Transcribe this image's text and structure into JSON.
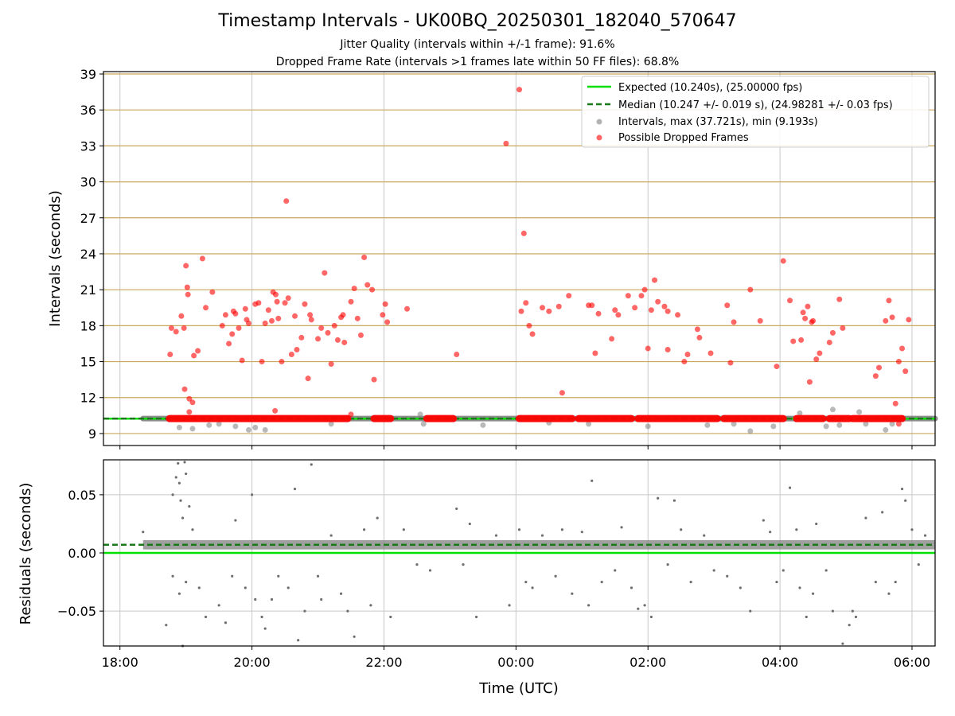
{
  "chart_data": [
    {
      "type": "scatter",
      "title": "Timestamp Intervals - UK00BQ_20250301_182040_570647",
      "subtitle_lines": [
        "Jitter Quality (intervals within +/-1 frame): 91.6%",
        "Dropped Frame Rate (intervals >1 frames late within 50 FF files): 68.8%"
      ],
      "xlabel": "",
      "ylabel": "Intervals (seconds)",
      "x_unit": "hours since 18:00 UTC (2025-03-01)",
      "xlim": [
        -0.25,
        12.35
      ],
      "ylim": [
        8,
        39.2
      ],
      "yticks": [
        9,
        12,
        15,
        18,
        21,
        24,
        27,
        30,
        33,
        36,
        39
      ],
      "ytick_labels": [
        "9",
        "12",
        "15",
        "18",
        "21",
        "24",
        "27",
        "30",
        "33",
        "36",
        "39"
      ],
      "grid": true,
      "legend_position": "top-right",
      "legend": [
        "Expected (10.240s), (25.00000 fps)",
        "Median (10.247 +/- 0.019 s), (24.98281 +/- 0.03 fps)",
        "Intervals, max (37.721s), min (9.193s)",
        "Possible Dropped Frames"
      ],
      "expected_interval": 10.24,
      "median_interval": 10.247,
      "intervals_range": [
        0.35,
        12.35
      ],
      "intervals_max": 37.721,
      "intervals_min": 9.193,
      "gray_outliers": [
        [
          0.9,
          9.5
        ],
        [
          1.1,
          9.4
        ],
        [
          1.35,
          9.7
        ],
        [
          1.5,
          9.8
        ],
        [
          1.75,
          9.6
        ],
        [
          1.95,
          9.3
        ],
        [
          2.05,
          9.5
        ],
        [
          2.2,
          9.3
        ],
        [
          3.2,
          9.8
        ],
        [
          4.55,
          10.6
        ],
        [
          4.6,
          9.8
        ],
        [
          5.5,
          9.7
        ],
        [
          6.5,
          9.9
        ],
        [
          7.1,
          9.8
        ],
        [
          8.0,
          9.6
        ],
        [
          8.9,
          9.7
        ],
        [
          9.3,
          9.8
        ],
        [
          9.55,
          9.2
        ],
        [
          9.9,
          9.6
        ],
        [
          10.3,
          10.7
        ],
        [
          10.7,
          9.6
        ],
        [
          10.8,
          11.0
        ],
        [
          10.9,
          9.7
        ],
        [
          11.2,
          10.8
        ],
        [
          11.3,
          9.8
        ],
        [
          11.6,
          9.3
        ],
        [
          11.7,
          9.8
        ]
      ],
      "dropped_frame_bands": [
        [
          0.75,
          3.45
        ],
        [
          3.85,
          4.1
        ],
        [
          4.65,
          5.05
        ],
        [
          6.05,
          6.85
        ],
        [
          6.95,
          7.75
        ],
        [
          7.85,
          9.05
        ],
        [
          9.15,
          10.05
        ],
        [
          10.25,
          10.65
        ],
        [
          10.75,
          11.05
        ],
        [
          11.1,
          11.85
        ]
      ],
      "dropped_frames": [
        [
          0.76,
          15.6
        ],
        [
          0.78,
          17.8
        ],
        [
          0.85,
          17.5
        ],
        [
          0.93,
          18.8
        ],
        [
          0.97,
          17.8
        ],
        [
          1.0,
          23.0
        ],
        [
          1.02,
          21.2
        ],
        [
          1.03,
          20.6
        ],
        [
          0.98,
          12.7
        ],
        [
          1.05,
          11.9
        ],
        [
          1.1,
          11.6
        ],
        [
          1.12,
          15.5
        ],
        [
          1.18,
          15.9
        ],
        [
          1.25,
          23.6
        ],
        [
          1.3,
          19.5
        ],
        [
          1.4,
          20.8
        ],
        [
          1.55,
          18.0
        ],
        [
          1.6,
          18.9
        ],
        [
          1.65,
          16.5
        ],
        [
          1.7,
          17.3
        ],
        [
          1.72,
          19.2
        ],
        [
          1.75,
          19.0
        ],
        [
          1.8,
          17.8
        ],
        [
          1.85,
          15.1
        ],
        [
          1.9,
          19.4
        ],
        [
          1.92,
          18.5
        ],
        [
          1.95,
          18.2
        ],
        [
          2.05,
          19.8
        ],
        [
          2.1,
          19.9
        ],
        [
          2.15,
          15.0
        ],
        [
          2.2,
          18.2
        ],
        [
          2.25,
          19.3
        ],
        [
          2.3,
          18.4
        ],
        [
          2.32,
          20.8
        ],
        [
          2.36,
          20.6
        ],
        [
          2.38,
          20.0
        ],
        [
          2.4,
          18.6
        ],
        [
          2.45,
          15.0
        ],
        [
          2.5,
          19.9
        ],
        [
          2.52,
          28.4
        ],
        [
          2.55,
          20.3
        ],
        [
          2.6,
          15.6
        ],
        [
          2.65,
          18.8
        ],
        [
          2.68,
          16.0
        ],
        [
          2.75,
          17.0
        ],
        [
          2.8,
          19.8
        ],
        [
          2.85,
          13.6
        ],
        [
          2.88,
          18.9
        ],
        [
          2.9,
          18.5
        ],
        [
          3.0,
          16.9
        ],
        [
          3.05,
          17.8
        ],
        [
          3.1,
          22.4
        ],
        [
          3.15,
          17.4
        ],
        [
          3.2,
          14.8
        ],
        [
          3.25,
          18.0
        ],
        [
          3.3,
          16.8
        ],
        [
          3.35,
          18.7
        ],
        [
          3.38,
          18.9
        ],
        [
          3.4,
          16.6
        ],
        [
          3.5,
          20.0
        ],
        [
          3.55,
          21.1
        ],
        [
          3.6,
          18.6
        ],
        [
          3.65,
          17.2
        ],
        [
          3.7,
          23.7
        ],
        [
          3.75,
          21.4
        ],
        [
          3.82,
          21.0
        ],
        [
          3.85,
          13.5
        ],
        [
          3.98,
          18.9
        ],
        [
          4.02,
          19.8
        ],
        [
          4.05,
          18.3
        ],
        [
          4.35,
          19.4
        ],
        [
          5.1,
          15.6
        ],
        [
          5.85,
          33.2
        ],
        [
          6.05,
          37.7
        ],
        [
          6.08,
          19.2
        ],
        [
          6.12,
          25.7
        ],
        [
          6.15,
          19.9
        ],
        [
          6.2,
          18.0
        ],
        [
          6.25,
          17.3
        ],
        [
          6.4,
          19.5
        ],
        [
          6.5,
          19.2
        ],
        [
          6.65,
          19.6
        ],
        [
          6.7,
          12.4
        ],
        [
          6.8,
          20.5
        ],
        [
          7.1,
          19.7
        ],
        [
          7.15,
          19.7
        ],
        [
          7.2,
          15.7
        ],
        [
          7.25,
          19.0
        ],
        [
          7.45,
          16.9
        ],
        [
          7.5,
          19.3
        ],
        [
          7.55,
          18.9
        ],
        [
          7.7,
          20.5
        ],
        [
          7.8,
          19.5
        ],
        [
          7.9,
          20.5
        ],
        [
          7.95,
          21.0
        ],
        [
          8.0,
          16.1
        ],
        [
          8.05,
          19.3
        ],
        [
          8.1,
          21.8
        ],
        [
          8.15,
          20.0
        ],
        [
          8.25,
          19.6
        ],
        [
          8.3,
          19.2
        ],
        [
          8.3,
          16.0
        ],
        [
          8.45,
          18.9
        ],
        [
          8.55,
          15.0
        ],
        [
          8.6,
          15.6
        ],
        [
          8.75,
          17.7
        ],
        [
          8.78,
          17.0
        ],
        [
          8.95,
          15.7
        ],
        [
          9.2,
          19.7
        ],
        [
          9.25,
          14.9
        ],
        [
          9.3,
          18.3
        ],
        [
          9.55,
          21.0
        ],
        [
          9.7,
          18.4
        ],
        [
          9.95,
          14.6
        ],
        [
          10.05,
          23.4
        ],
        [
          10.15,
          20.1
        ],
        [
          10.2,
          16.7
        ],
        [
          10.32,
          16.8
        ],
        [
          10.35,
          19.1
        ],
        [
          10.38,
          18.6
        ],
        [
          10.42,
          19.6
        ],
        [
          10.45,
          13.3
        ],
        [
          10.48,
          18.3
        ],
        [
          10.5,
          18.4
        ],
        [
          10.55,
          15.2
        ],
        [
          10.6,
          15.7
        ],
        [
          10.75,
          16.6
        ],
        [
          10.8,
          17.4
        ],
        [
          10.9,
          20.2
        ],
        [
          10.95,
          17.8
        ],
        [
          11.6,
          18.4
        ],
        [
          11.65,
          20.1
        ],
        [
          11.7,
          18.7
        ],
        [
          11.8,
          15.0
        ],
        [
          11.85,
          16.1
        ],
        [
          11.9,
          14.2
        ],
        [
          11.95,
          18.5
        ],
        [
          11.5,
          14.5
        ],
        [
          11.45,
          13.8
        ],
        [
          11.75,
          11.5
        ],
        [
          11.8,
          9.8
        ],
        [
          1.05,
          10.8
        ],
        [
          2.35,
          10.9
        ],
        [
          3.5,
          10.6
        ]
      ]
    },
    {
      "type": "scatter",
      "xlabel": "Time (UTC)",
      "ylabel": "Residuals (seconds)",
      "xlim": [
        -0.25,
        12.35
      ],
      "ylim": [
        -0.08,
        0.08
      ],
      "xticks": [
        0,
        2,
        4,
        6,
        8,
        10,
        12
      ],
      "xtick_labels": [
        "18:00",
        "20:00",
        "22:00",
        "00:00",
        "02:00",
        "04:00",
        "06:00"
      ],
      "yticks": [
        -0.05,
        0.0,
        0.05
      ],
      "ytick_labels": [
        "−0.05",
        "0.00",
        "0.05"
      ],
      "grid": true,
      "expected_residual": 0.0,
      "median_residual": 0.007,
      "residual_band_center": 0.007,
      "residual_band_halfwidth": 0.004,
      "residual_band_range": [
        0.35,
        12.35
      ],
      "residual_outliers": [
        [
          0.35,
          0.018
        ],
        [
          0.7,
          -0.062
        ],
        [
          0.8,
          0.05
        ],
        [
          0.85,
          0.065
        ],
        [
          0.88,
          0.077
        ],
        [
          0.9,
          0.06
        ],
        [
          0.92,
          0.045
        ],
        [
          0.95,
          0.03
        ],
        [
          0.98,
          0.078
        ],
        [
          1.0,
          0.068
        ],
        [
          1.05,
          0.04
        ],
        [
          1.1,
          0.02
        ],
        [
          0.8,
          -0.02
        ],
        [
          0.9,
          -0.035
        ],
        [
          1.0,
          -0.025
        ],
        [
          1.2,
          -0.03
        ],
        [
          0.95,
          -0.08
        ],
        [
          1.3,
          -0.055
        ],
        [
          1.5,
          -0.045
        ],
        [
          1.6,
          -0.06
        ],
        [
          1.7,
          -0.02
        ],
        [
          1.75,
          0.028
        ],
        [
          1.9,
          -0.03
        ],
        [
          2.0,
          0.05
        ],
        [
          2.05,
          -0.04
        ],
        [
          2.15,
          -0.055
        ],
        [
          2.2,
          -0.065
        ],
        [
          2.3,
          -0.04
        ],
        [
          2.4,
          -0.02
        ],
        [
          2.55,
          -0.03
        ],
        [
          2.65,
          0.055
        ],
        [
          2.7,
          -0.075
        ],
        [
          2.8,
          -0.05
        ],
        [
          2.9,
          0.076
        ],
        [
          3.0,
          -0.02
        ],
        [
          3.05,
          -0.04
        ],
        [
          3.2,
          0.015
        ],
        [
          3.35,
          -0.035
        ],
        [
          3.45,
          -0.05
        ],
        [
          3.55,
          -0.072
        ],
        [
          3.7,
          0.02
        ],
        [
          3.8,
          -0.045
        ],
        [
          3.9,
          0.03
        ],
        [
          4.1,
          -0.055
        ],
        [
          4.3,
          0.02
        ],
        [
          4.5,
          -0.01
        ],
        [
          4.7,
          -0.015
        ],
        [
          5.1,
          0.038
        ],
        [
          5.2,
          -0.01
        ],
        [
          5.3,
          0.025
        ],
        [
          5.4,
          -0.055
        ],
        [
          5.7,
          0.015
        ],
        [
          5.9,
          -0.045
        ],
        [
          6.05,
          0.02
        ],
        [
          6.15,
          -0.025
        ],
        [
          6.25,
          -0.03
        ],
        [
          6.4,
          0.015
        ],
        [
          6.6,
          -0.02
        ],
        [
          6.7,
          0.02
        ],
        [
          6.85,
          -0.035
        ],
        [
          7.0,
          0.018
        ],
        [
          7.1,
          -0.045
        ],
        [
          7.15,
          0.062
        ],
        [
          7.3,
          -0.025
        ],
        [
          7.5,
          -0.015
        ],
        [
          7.6,
          0.022
        ],
        [
          7.75,
          -0.03
        ],
        [
          7.85,
          -0.048
        ],
        [
          7.95,
          -0.045
        ],
        [
          8.05,
          -0.055
        ],
        [
          8.15,
          0.047
        ],
        [
          8.3,
          -0.01
        ],
        [
          8.4,
          0.045
        ],
        [
          8.5,
          0.02
        ],
        [
          8.65,
          -0.025
        ],
        [
          8.85,
          0.015
        ],
        [
          9.0,
          -0.015
        ],
        [
          9.2,
          -0.02
        ],
        [
          9.4,
          -0.03
        ],
        [
          9.55,
          -0.05
        ],
        [
          9.75,
          0.028
        ],
        [
          9.85,
          0.018
        ],
        [
          9.95,
          -0.025
        ],
        [
          10.05,
          -0.015
        ],
        [
          10.15,
          0.056
        ],
        [
          10.3,
          -0.03
        ],
        [
          10.4,
          -0.055
        ],
        [
          10.5,
          -0.035
        ],
        [
          10.55,
          0.025
        ],
        [
          10.7,
          -0.015
        ],
        [
          10.8,
          -0.05
        ],
        [
          10.95,
          -0.078
        ],
        [
          11.05,
          -0.062
        ],
        [
          11.15,
          -0.055
        ],
        [
          11.3,
          0.03
        ],
        [
          11.45,
          -0.025
        ],
        [
          11.55,
          0.035
        ],
        [
          11.65,
          -0.035
        ],
        [
          11.75,
          -0.025
        ],
        [
          11.85,
          0.055
        ],
        [
          11.9,
          0.045
        ],
        [
          12.0,
          0.02
        ],
        [
          12.1,
          -0.01
        ],
        [
          12.2,
          0.015
        ],
        [
          11.1,
          -0.05
        ],
        [
          10.25,
          0.02
        ]
      ]
    }
  ],
  "colors": {
    "expected": "#00e000",
    "median": "#1a7a1a",
    "intervals": "#808080",
    "dropped": "#ff0000",
    "hgrid": "#c8a85a",
    "grid": "#c8c8c8"
  }
}
